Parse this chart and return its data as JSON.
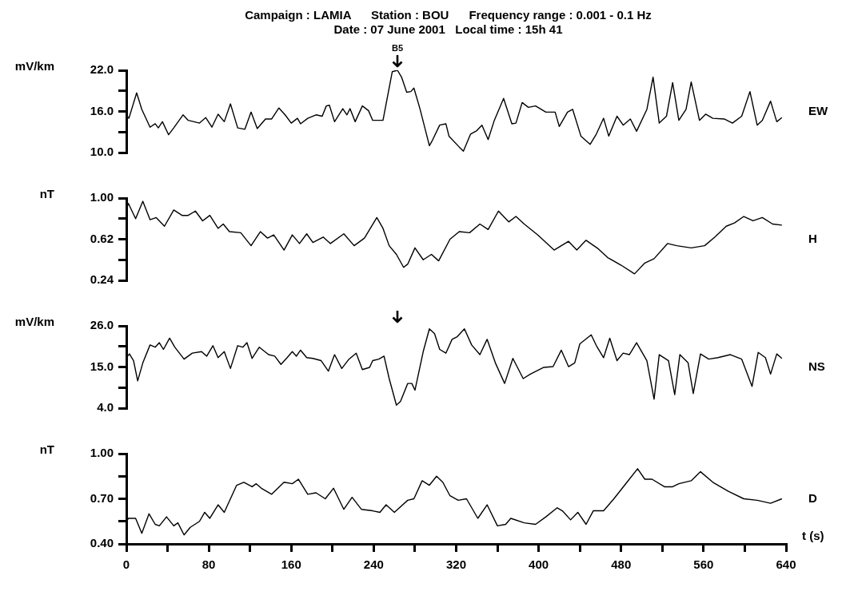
{
  "chart_data": [
    {
      "type": "line",
      "title": "Campaign : LAMIA      Station : BOU      Frequency range : 0.001 - 0.1 Hz",
      "subtitle": "Date : 07 June 2001   Local time : 15h 41",
      "ylabel": "mV/km",
      "marker": "none",
      "line_style": "solid",
      "tick_labels": "y",
      "xlim": [
        0,
        640
      ],
      "ylim": [
        10,
        22
      ],
      "yticks": [
        {
          "value": 10,
          "label": "10.0"
        },
        {
          "value": 13,
          "label": null
        },
        {
          "value": 16,
          "label": "16.0"
        },
        {
          "value": 19,
          "label": null
        },
        {
          "value": 22,
          "label": "22.0"
        }
      ],
      "annotations": [
        {
          "text": "B5",
          "x": 263,
          "y": 22
        }
      ],
      "series": [
        {
          "name": "EW",
          "color": "#000000",
          "x": [
            0,
            2.5,
            10,
            15,
            23,
            28,
            31,
            35,
            41,
            46,
            55,
            60,
            71,
            77,
            83,
            89,
            95,
            101,
            108,
            115,
            121,
            127,
            135,
            141,
            148,
            154,
            160,
            166,
            169,
            176,
            184,
            190,
            194,
            197,
            202,
            210,
            214,
            217,
            222,
            229,
            235,
            239,
            249,
            258,
            263,
            267,
            272,
            276,
            279,
            285,
            294,
            297,
            304,
            310,
            313,
            323,
            327,
            334,
            340,
            345,
            351,
            357,
            366,
            374,
            378,
            384,
            390,
            397,
            407,
            416,
            420,
            428,
            433,
            441,
            450,
            456,
            463,
            468,
            476,
            482,
            489,
            495,
            505,
            511,
            517,
            524,
            530,
            536,
            543,
            548,
            556,
            562,
            569,
            580,
            588,
            597,
            605,
            612,
            617,
            625,
            631,
            636
          ],
          "values": [
            15.5,
            15.0,
            18.7,
            16.3,
            13.7,
            14.2,
            13.6,
            14.5,
            12.6,
            13.6,
            15.5,
            14.7,
            14.3,
            15.1,
            13.7,
            15.6,
            14.5,
            17.1,
            13.6,
            13.4,
            15.9,
            13.5,
            14.9,
            14.9,
            16.5,
            15.5,
            14.3,
            15.0,
            14.2,
            15.0,
            15.5,
            15.3,
            16.8,
            16.9,
            14.5,
            16.4,
            15.5,
            16.4,
            14.5,
            16.8,
            16.1,
            14.7,
            14.7,
            21.8,
            22.0,
            21.0,
            18.8,
            18.9,
            19.4,
            16.3,
            11.0,
            11.8,
            14.0,
            14.2,
            12.4,
            10.8,
            10.2,
            12.7,
            13.2,
            14.0,
            11.9,
            14.7,
            17.9,
            14.2,
            14.3,
            17.3,
            16.6,
            16.8,
            15.9,
            15.9,
            13.8,
            15.9,
            16.3,
            12.4,
            11.2,
            12.7,
            15.0,
            12.4,
            15.3,
            14.0,
            14.9,
            13.1,
            16.3,
            21.0,
            14.3,
            15.3,
            20.2,
            14.7,
            16.3,
            20.3,
            14.7,
            15.6,
            15.0,
            14.9,
            14.3,
            15.3,
            18.9,
            14.0,
            14.7,
            17.5,
            14.5,
            15.1
          ]
        }
      ]
    },
    {
      "type": "line",
      "ylabel": "nT",
      "marker": "none",
      "line_style": "solid",
      "tick_labels": "y",
      "xlim": [
        0,
        640
      ],
      "ylim": [
        0.24,
        1.0
      ],
      "yticks": [
        {
          "value": 0.24,
          "label": "0.24"
        },
        {
          "value": 0.43,
          "label": null
        },
        {
          "value": 0.62,
          "label": "0.62"
        },
        {
          "value": 0.81,
          "label": null
        },
        {
          "value": 1.0,
          "label": "1.00"
        }
      ],
      "series": [
        {
          "name": "H",
          "color": "#000000",
          "x": [
            0,
            2,
            9,
            16,
            23,
            29,
            37,
            46,
            54,
            60,
            67,
            74,
            81,
            89,
            94,
            100,
            111,
            121,
            130,
            137,
            143,
            153,
            161,
            168,
            175,
            181,
            191,
            198,
            211,
            221,
            231,
            243,
            249,
            255,
            262,
            269,
            273,
            280,
            288,
            296,
            303,
            314,
            323,
            333,
            343,
            351,
            361,
            371,
            378,
            386,
            399,
            415,
            429,
            437,
            446,
            458,
            467,
            480,
            493,
            503,
            512,
            525,
            534,
            548,
            561,
            571,
            582,
            590,
            599,
            608,
            617,
            627,
            636
          ],
          "values": [
            0.9,
            0.95,
            0.81,
            0.97,
            0.8,
            0.82,
            0.74,
            0.89,
            0.84,
            0.84,
            0.88,
            0.79,
            0.84,
            0.72,
            0.76,
            0.69,
            0.68,
            0.56,
            0.69,
            0.63,
            0.66,
            0.52,
            0.66,
            0.58,
            0.67,
            0.59,
            0.64,
            0.58,
            0.67,
            0.56,
            0.63,
            0.82,
            0.72,
            0.56,
            0.48,
            0.36,
            0.39,
            0.54,
            0.43,
            0.48,
            0.42,
            0.62,
            0.69,
            0.68,
            0.76,
            0.71,
            0.88,
            0.78,
            0.83,
            0.76,
            0.66,
            0.52,
            0.6,
            0.52,
            0.61,
            0.53,
            0.45,
            0.38,
            0.3,
            0.4,
            0.44,
            0.58,
            0.56,
            0.54,
            0.56,
            0.64,
            0.74,
            0.77,
            0.83,
            0.79,
            0.82,
            0.76,
            0.75
          ]
        }
      ]
    },
    {
      "type": "line",
      "ylabel": "mV/km",
      "marker": "none",
      "line_style": "solid",
      "tick_labels": "y",
      "xlim": [
        0,
        640
      ],
      "ylim": [
        4,
        26
      ],
      "yticks": [
        {
          "value": 4,
          "label": "4.0"
        },
        {
          "value": 9.5,
          "label": null
        },
        {
          "value": 15,
          "label": "15.0"
        },
        {
          "value": 20.5,
          "label": null
        },
        {
          "value": 26,
          "label": "26.0"
        }
      ],
      "series": [
        {
          "name": "NS",
          "color": "#000000",
          "x": [
            0,
            3,
            7,
            11,
            16,
            23,
            28,
            32,
            36,
            42,
            47,
            56,
            64,
            73,
            78,
            84,
            89,
            95,
            101,
            108,
            113,
            117,
            122,
            129,
            138,
            144,
            150,
            156,
            161,
            165,
            169,
            175,
            181,
            189,
            196,
            202,
            209,
            216,
            223,
            229,
            236,
            239,
            245,
            250,
            255,
            262,
            266,
            273,
            277,
            280,
            288,
            294,
            299,
            304,
            310,
            316,
            321,
            328,
            335,
            343,
            350,
            358,
            367,
            375,
            385,
            392,
            405,
            414,
            422,
            429,
            435,
            440,
            451,
            456,
            463,
            469,
            476,
            482,
            488,
            495,
            505,
            512,
            517,
            526,
            532,
            537,
            545,
            550,
            557,
            565,
            574,
            586,
            597,
            607,
            613,
            620,
            625,
            631,
            636
          ],
          "values": [
            17.5,
            18.5,
            16.7,
            11.3,
            16.1,
            20.9,
            20.3,
            21.5,
            19.7,
            22.7,
            20.3,
            17.1,
            18.7,
            19.1,
            17.9,
            20.7,
            17.5,
            19.1,
            14.6,
            20.7,
            20.3,
            21.5,
            17.3,
            20.3,
            18.3,
            17.9,
            15.7,
            17.5,
            19.1,
            17.9,
            19.5,
            17.5,
            17.3,
            16.7,
            13.9,
            18.3,
            14.6,
            17.1,
            18.7,
            14.3,
            14.9,
            16.7,
            17.1,
            17.9,
            11.9,
            4.8,
            5.8,
            10.6,
            10.6,
            8.8,
            19.1,
            25.2,
            23.9,
            19.7,
            18.7,
            22.4,
            23.1,
            25.2,
            20.9,
            18.3,
            22.4,
            16.1,
            10.6,
            17.3,
            11.9,
            13.1,
            14.9,
            15.1,
            19.5,
            15.1,
            16.1,
            21.2,
            23.6,
            20.7,
            17.5,
            22.7,
            16.7,
            18.7,
            18.3,
            21.5,
            16.7,
            6.4,
            18.3,
            16.7,
            7.6,
            18.3,
            16.1,
            7.9,
            18.5,
            17.1,
            17.5,
            18.3,
            17.1,
            9.8,
            18.9,
            17.5,
            13.1,
            18.5,
            17.3
          ]
        }
      ]
    },
    {
      "type": "line",
      "ylabel": "nT",
      "xlabel": "t (s)",
      "marker": "none",
      "line_style": "solid",
      "xlim": [
        0,
        640
      ],
      "xticks": [
        0,
        {
          "value": 40,
          "label": null
        },
        80,
        {
          "value": 120,
          "label": null
        },
        160,
        {
          "value": 200,
          "label": null
        },
        240,
        {
          "value": 280,
          "label": null
        },
        320,
        {
          "value": 360,
          "label": null
        },
        400,
        {
          "value": 440,
          "label": null
        },
        480,
        {
          "value": 520,
          "label": null
        },
        560,
        {
          "value": 600,
          "label": null
        },
        640
      ],
      "ylim": [
        0.4,
        1.0
      ],
      "yticks": [
        {
          "value": 0.4,
          "label": "0.40"
        },
        {
          "value": 0.55,
          "label": null
        },
        {
          "value": 0.7,
          "label": "0.70"
        },
        {
          "value": 0.85,
          "label": null
        },
        {
          "value": 1.0,
          "label": "1.00"
        }
      ],
      "series": [
        {
          "name": "D",
          "color": "#000000",
          "x": [
            0,
            2,
            9,
            15,
            22,
            28,
            32,
            39,
            46,
            50,
            56,
            62,
            71,
            76,
            81,
            89,
            95,
            107,
            114,
            122,
            126,
            131,
            141,
            153,
            161,
            167,
            176,
            184,
            193,
            201,
            211,
            219,
            228,
            239,
            246,
            252,
            260,
            273,
            279,
            287,
            294,
            301,
            307,
            314,
            322,
            330,
            341,
            350,
            360,
            368,
            373,
            386,
            397,
            407,
            418,
            423,
            431,
            438,
            446,
            453,
            463,
            473,
            488,
            496,
            503,
            510,
            522,
            530,
            536,
            548,
            557,
            569,
            584,
            599,
            612,
            625,
            636
          ],
          "values": [
            0.55,
            0.57,
            0.57,
            0.47,
            0.6,
            0.53,
            0.52,
            0.58,
            0.52,
            0.54,
            0.46,
            0.51,
            0.55,
            0.61,
            0.57,
            0.66,
            0.61,
            0.79,
            0.81,
            0.78,
            0.8,
            0.77,
            0.73,
            0.81,
            0.8,
            0.83,
            0.73,
            0.74,
            0.7,
            0.77,
            0.63,
            0.71,
            0.63,
            0.62,
            0.61,
            0.66,
            0.61,
            0.69,
            0.7,
            0.82,
            0.79,
            0.85,
            0.81,
            0.72,
            0.69,
            0.7,
            0.57,
            0.66,
            0.52,
            0.53,
            0.57,
            0.54,
            0.53,
            0.58,
            0.64,
            0.62,
            0.56,
            0.61,
            0.53,
            0.62,
            0.62,
            0.7,
            0.83,
            0.9,
            0.83,
            0.83,
            0.78,
            0.78,
            0.8,
            0.82,
            0.88,
            0.81,
            0.75,
            0.7,
            0.69,
            0.67,
            0.7
          ]
        }
      ]
    }
  ]
}
